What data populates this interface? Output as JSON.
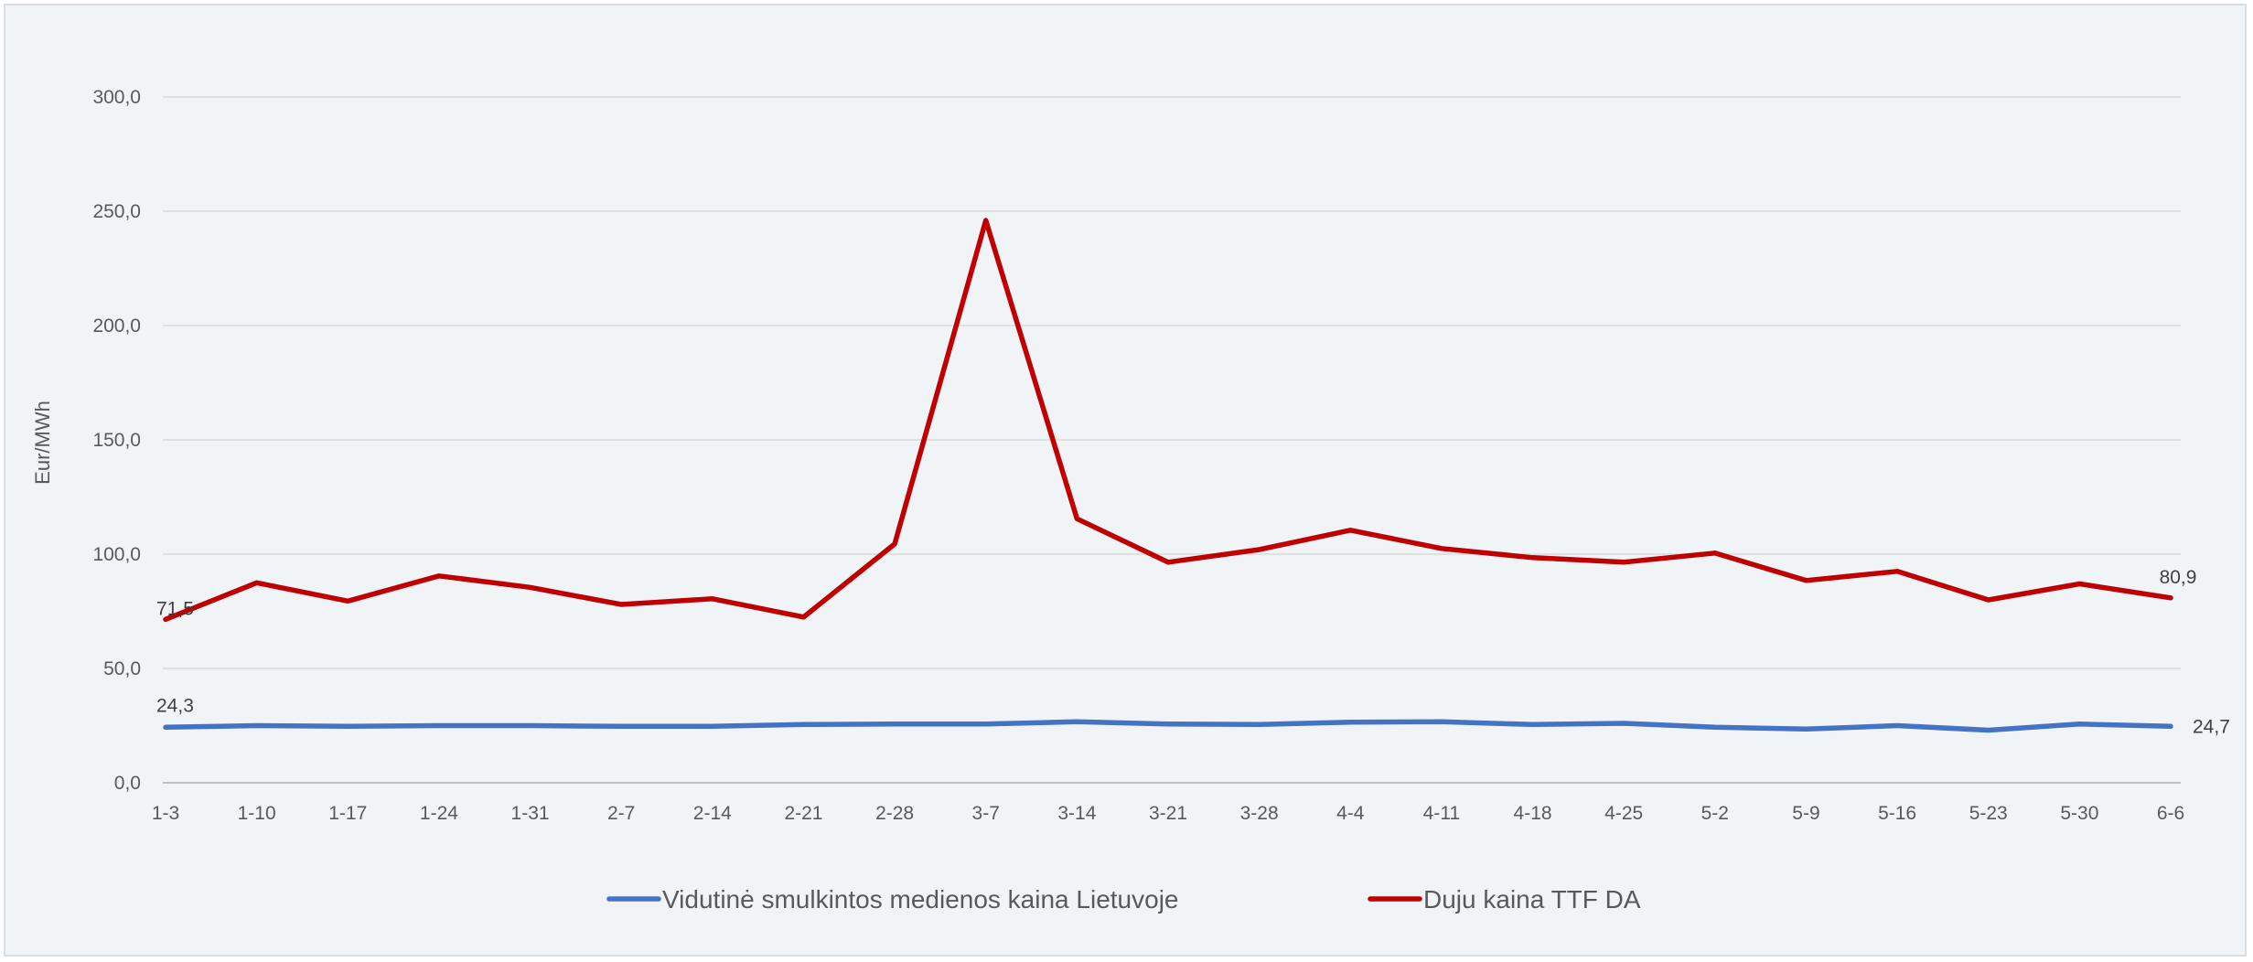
{
  "chart_data": {
    "type": "line",
    "title": "",
    "xlabel": "",
    "ylabel": "Eur/MWh",
    "ylim": [
      0,
      300
    ],
    "y_ticks": [
      "0,0",
      "50,0",
      "100,0",
      "150,0",
      "200,0",
      "250,0",
      "300,0"
    ],
    "grid": "horizontal",
    "legend_position": "bottom",
    "categories": [
      "1-3",
      "1-10",
      "1-17",
      "1-24",
      "1-31",
      "2-7",
      "2-14",
      "2-21",
      "2-28",
      "3-7",
      "3-14",
      "3-21",
      "3-28",
      "4-4",
      "4-11",
      "4-18",
      "4-25",
      "5-2",
      "5-9",
      "5-16",
      "5-23",
      "5-30",
      "6-6"
    ],
    "series": [
      {
        "name": "Vidutinė smulkintos medienos kaina Lietuvoje",
        "color": "#4472c4",
        "values": [
          24.3,
          25.0,
          24.7,
          25.0,
          25.0,
          24.7,
          24.7,
          25.5,
          25.7,
          25.7,
          26.7,
          25.7,
          25.5,
          26.5,
          26.7,
          25.5,
          26.0,
          24.3,
          23.5,
          25.0,
          23.0,
          25.7,
          24.7
        ],
        "first_label": "24,3",
        "last_label": "24,7"
      },
      {
        "name": "Duju kaina TTF DA",
        "color": "#c00000",
        "values": [
          71.5,
          87.5,
          79.5,
          90.5,
          85.5,
          78.0,
          80.5,
          72.5,
          104.5,
          246.0,
          115.5,
          96.5,
          102.0,
          110.5,
          102.5,
          98.5,
          96.5,
          100.5,
          88.5,
          92.5,
          80.0,
          87.0,
          80.9
        ],
        "first_label": "71,5",
        "last_label": "80,9"
      }
    ]
  }
}
